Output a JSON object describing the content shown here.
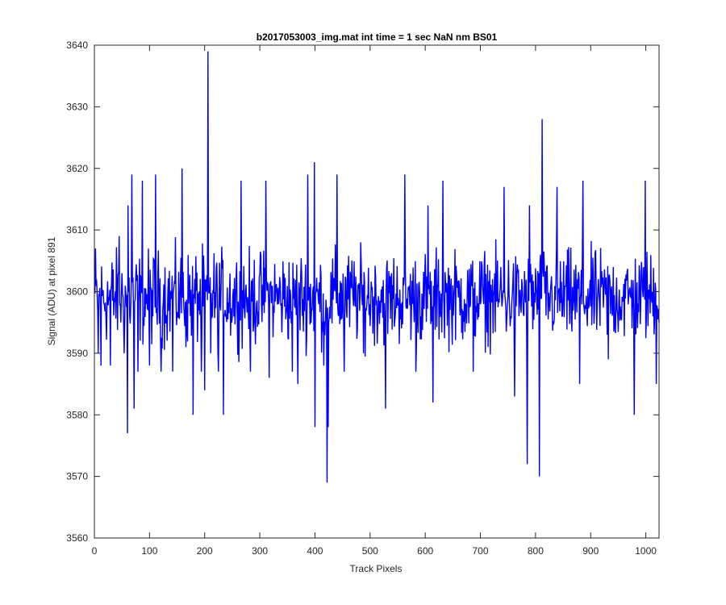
{
  "chart_data": {
    "type": "line",
    "title": "b2017053003_img.mat int time = 1 sec  NaN nm BS01",
    "xlabel": "Track Pixels",
    "ylabel": "Signal (ADU) at pixel 891",
    "xlim": [
      0,
      1024
    ],
    "ylim": [
      3560,
      3640
    ],
    "xticks": [
      0,
      100,
      200,
      300,
      400,
      500,
      600,
      700,
      800,
      900,
      1000
    ],
    "yticks": [
      3560,
      3570,
      3580,
      3590,
      3600,
      3610,
      3620,
      3630,
      3640
    ],
    "grid": false,
    "series": [
      {
        "color": "#0000ff",
        "n_points": 1024,
        "baseline": 3599,
        "noise_amplitude": 5,
        "spikes": [
          {
            "x": 1,
            "y": 3607
          },
          {
            "x": 6,
            "y": 3590
          },
          {
            "x": 11,
            "y": 3588
          },
          {
            "x": 28,
            "y": 3588
          },
          {
            "x": 44,
            "y": 3609
          },
          {
            "x": 53,
            "y": 3590
          },
          {
            "x": 59,
            "y": 3577
          },
          {
            "x": 60,
            "y": 3614
          },
          {
            "x": 67,
            "y": 3619
          },
          {
            "x": 71,
            "y": 3581
          },
          {
            "x": 78,
            "y": 3587
          },
          {
            "x": 86,
            "y": 3618
          },
          {
            "x": 99,
            "y": 3588
          },
          {
            "x": 110,
            "y": 3619
          },
          {
            "x": 120,
            "y": 3587
          },
          {
            "x": 141,
            "y": 3587
          },
          {
            "x": 158,
            "y": 3620
          },
          {
            "x": 165,
            "y": 3591
          },
          {
            "x": 178,
            "y": 3580
          },
          {
            "x": 193,
            "y": 3587
          },
          {
            "x": 199,
            "y": 3584
          },
          {
            "x": 205,
            "y": 3639
          },
          {
            "x": 210,
            "y": 3590
          },
          {
            "x": 224,
            "y": 3587
          },
          {
            "x": 233,
            "y": 3580
          },
          {
            "x": 265,
            "y": 3618
          },
          {
            "x": 282,
            "y": 3587
          },
          {
            "x": 310,
            "y": 3618
          },
          {
            "x": 316,
            "y": 3586
          },
          {
            "x": 358,
            "y": 3587
          },
          {
            "x": 368,
            "y": 3585
          },
          {
            "x": 386,
            "y": 3619
          },
          {
            "x": 399,
            "y": 3578
          },
          {
            "x": 398,
            "y": 3621
          },
          {
            "x": 415,
            "y": 3588
          },
          {
            "x": 421,
            "y": 3569
          },
          {
            "x": 423,
            "y": 3578
          },
          {
            "x": 439,
            "y": 3619
          },
          {
            "x": 452,
            "y": 3587
          },
          {
            "x": 487,
            "y": 3590
          },
          {
            "x": 527,
            "y": 3581
          },
          {
            "x": 562,
            "y": 3619
          },
          {
            "x": 582,
            "y": 3587
          },
          {
            "x": 604,
            "y": 3614
          },
          {
            "x": 613,
            "y": 3582
          },
          {
            "x": 631,
            "y": 3618
          },
          {
            "x": 686,
            "y": 3587
          },
          {
            "x": 742,
            "y": 3617
          },
          {
            "x": 761,
            "y": 3583
          },
          {
            "x": 784,
            "y": 3572
          },
          {
            "x": 788,
            "y": 3614
          },
          {
            "x": 806,
            "y": 3570
          },
          {
            "x": 811,
            "y": 3628
          },
          {
            "x": 838,
            "y": 3617
          },
          {
            "x": 879,
            "y": 3585
          },
          {
            "x": 885,
            "y": 3618
          },
          {
            "x": 931,
            "y": 3589
          },
          {
            "x": 978,
            "y": 3580
          },
          {
            "x": 998,
            "y": 3618
          },
          {
            "x": 1018,
            "y": 3585
          }
        ]
      }
    ]
  }
}
